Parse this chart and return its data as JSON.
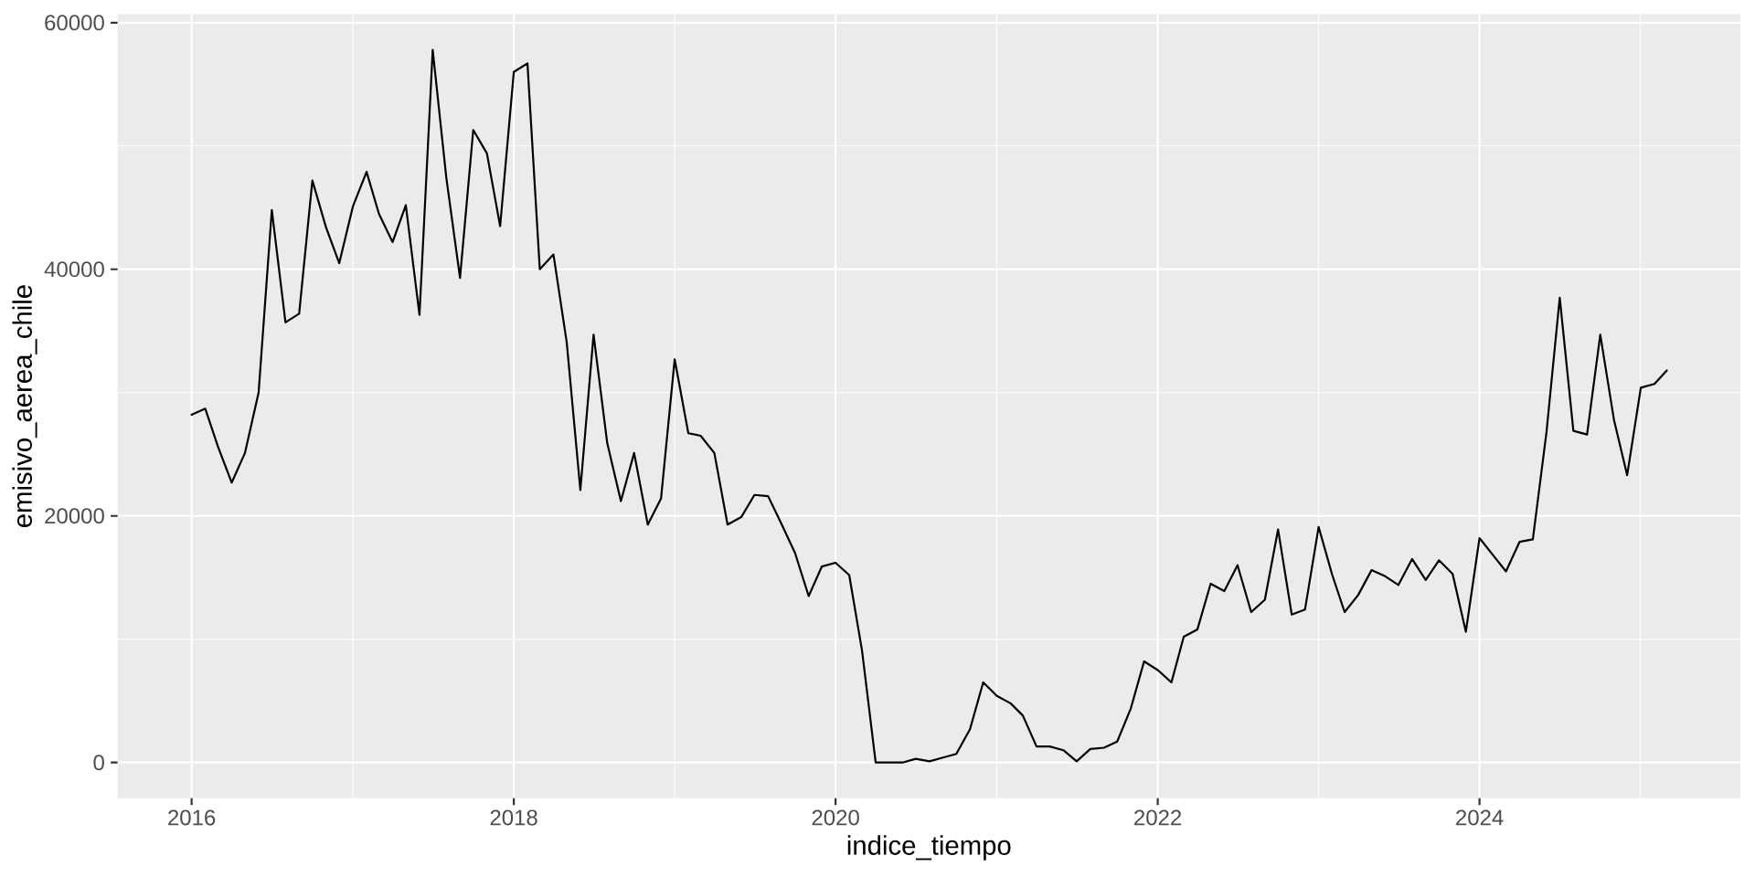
{
  "chart_data": {
    "type": "line",
    "xlabel": "indice_tiempo",
    "ylabel": "emisivo_aerea_chile",
    "x": [
      "2016-01",
      "2016-02",
      "2016-03",
      "2016-04",
      "2016-05",
      "2016-06",
      "2016-07",
      "2016-08",
      "2016-09",
      "2016-10",
      "2016-11",
      "2016-12",
      "2017-01",
      "2017-02",
      "2017-03",
      "2017-04",
      "2017-05",
      "2017-06",
      "2017-07",
      "2017-08",
      "2017-09",
      "2017-10",
      "2017-11",
      "2017-12",
      "2018-01",
      "2018-02",
      "2018-03",
      "2018-04",
      "2018-05",
      "2018-06",
      "2018-07",
      "2018-08",
      "2018-09",
      "2018-10",
      "2018-11",
      "2018-12",
      "2019-01",
      "2019-02",
      "2019-03",
      "2019-04",
      "2019-05",
      "2019-06",
      "2019-07",
      "2019-08",
      "2019-09",
      "2019-10",
      "2019-11",
      "2019-12",
      "2020-01",
      "2020-02",
      "2020-03",
      "2020-04",
      "2020-05",
      "2020-06",
      "2020-07",
      "2020-08",
      "2020-09",
      "2020-10",
      "2020-11",
      "2020-12",
      "2021-01",
      "2021-02",
      "2021-03",
      "2021-04",
      "2021-05",
      "2021-06",
      "2021-07",
      "2021-08",
      "2021-09",
      "2021-10",
      "2021-11",
      "2021-12",
      "2022-01",
      "2022-02",
      "2022-03",
      "2022-04",
      "2022-05",
      "2022-06",
      "2022-07",
      "2022-08",
      "2022-09",
      "2022-10",
      "2022-11",
      "2022-12",
      "2023-01",
      "2023-02",
      "2023-03",
      "2023-04",
      "2023-05",
      "2023-06",
      "2023-07",
      "2023-08",
      "2023-09",
      "2023-10",
      "2023-11",
      "2023-12",
      "2024-01",
      "2024-02",
      "2024-03",
      "2024-04",
      "2024-05",
      "2024-06",
      "2024-07",
      "2024-08",
      "2024-09",
      "2024-10",
      "2024-11",
      "2024-12",
      "2025-01",
      "2025-02",
      "2025-03"
    ],
    "values": [
      28200,
      28700,
      25600,
      22700,
      25100,
      30000,
      44800,
      35700,
      36400,
      47200,
      43400,
      40500,
      45100,
      47900,
      44500,
      42200,
      45200,
      36300,
      57800,
      47400,
      39300,
      51300,
      49400,
      43500,
      56000,
      56700,
      40000,
      41200,
      34100,
      22100,
      34700,
      25900,
      21200,
      25100,
      19300,
      21400,
      32700,
      26700,
      26500,
      25100,
      19300,
      19900,
      21700,
      21600,
      19300,
      17000,
      13500,
      15900,
      16200,
      15200,
      9100,
      0,
      0,
      0,
      300,
      100,
      400,
      700,
      2700,
      6500,
      5400,
      4800,
      3800,
      1300,
      1300,
      1000,
      100,
      1100,
      1200,
      1700,
      4400,
      8200,
      7500,
      6500,
      10200,
      10800,
      14500,
      13900,
      16000,
      12200,
      13200,
      18900,
      12000,
      12400,
      19100,
      15200,
      12200,
      13600,
      15600,
      15100,
      14400,
      16500,
      14800,
      16400,
      15300,
      10600,
      18200,
      16800,
      15500,
      17900,
      18100,
      26800,
      37700,
      26900,
      26600,
      34700,
      27800,
      23300,
      30400,
      30700,
      31800
    ],
    "color": "#000000",
    "xlim": [
      "2015-07-17",
      "2025-08-15"
    ],
    "xticks": [
      "2016",
      "2018",
      "2020",
      "2022",
      "2024"
    ],
    "ylim": [
      -2890,
      60690
    ],
    "yticks": [
      0,
      20000,
      40000,
      60000
    ],
    "grid": true
  }
}
